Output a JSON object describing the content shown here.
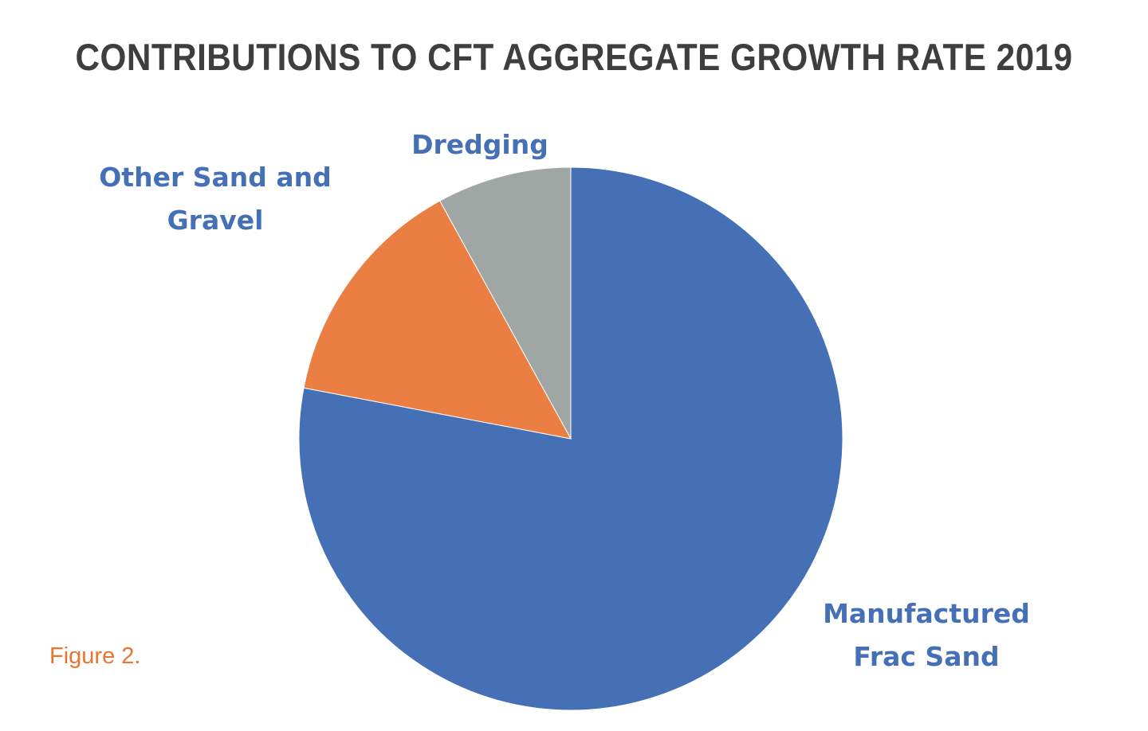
{
  "chart_data": {
    "type": "pie",
    "title": "CONTRIBUTIONS TO CFT AGGREGATE GROWTH RATE 2019",
    "slices": [
      {
        "label": "Manufactured Frac Sand",
        "label_lines": [
          "Manufactured",
          "Frac Sand"
        ],
        "value": 78,
        "color": "#4670b5"
      },
      {
        "label": "Other Sand and Gravel",
        "label_lines": [
          "Other Sand and",
          "Gravel"
        ],
        "value": 14,
        "color": "#ea7e43"
      },
      {
        "label": "Dredging",
        "label_lines": [
          "Dredging"
        ],
        "value": 8,
        "color": "#a0a6a4"
      }
    ],
    "start_angle": "12 o'clock",
    "direction": "clockwise",
    "label_color": "#4670b5",
    "legend": "none"
  },
  "caption": {
    "text": "Figure 2.",
    "color": "#e8742e"
  }
}
